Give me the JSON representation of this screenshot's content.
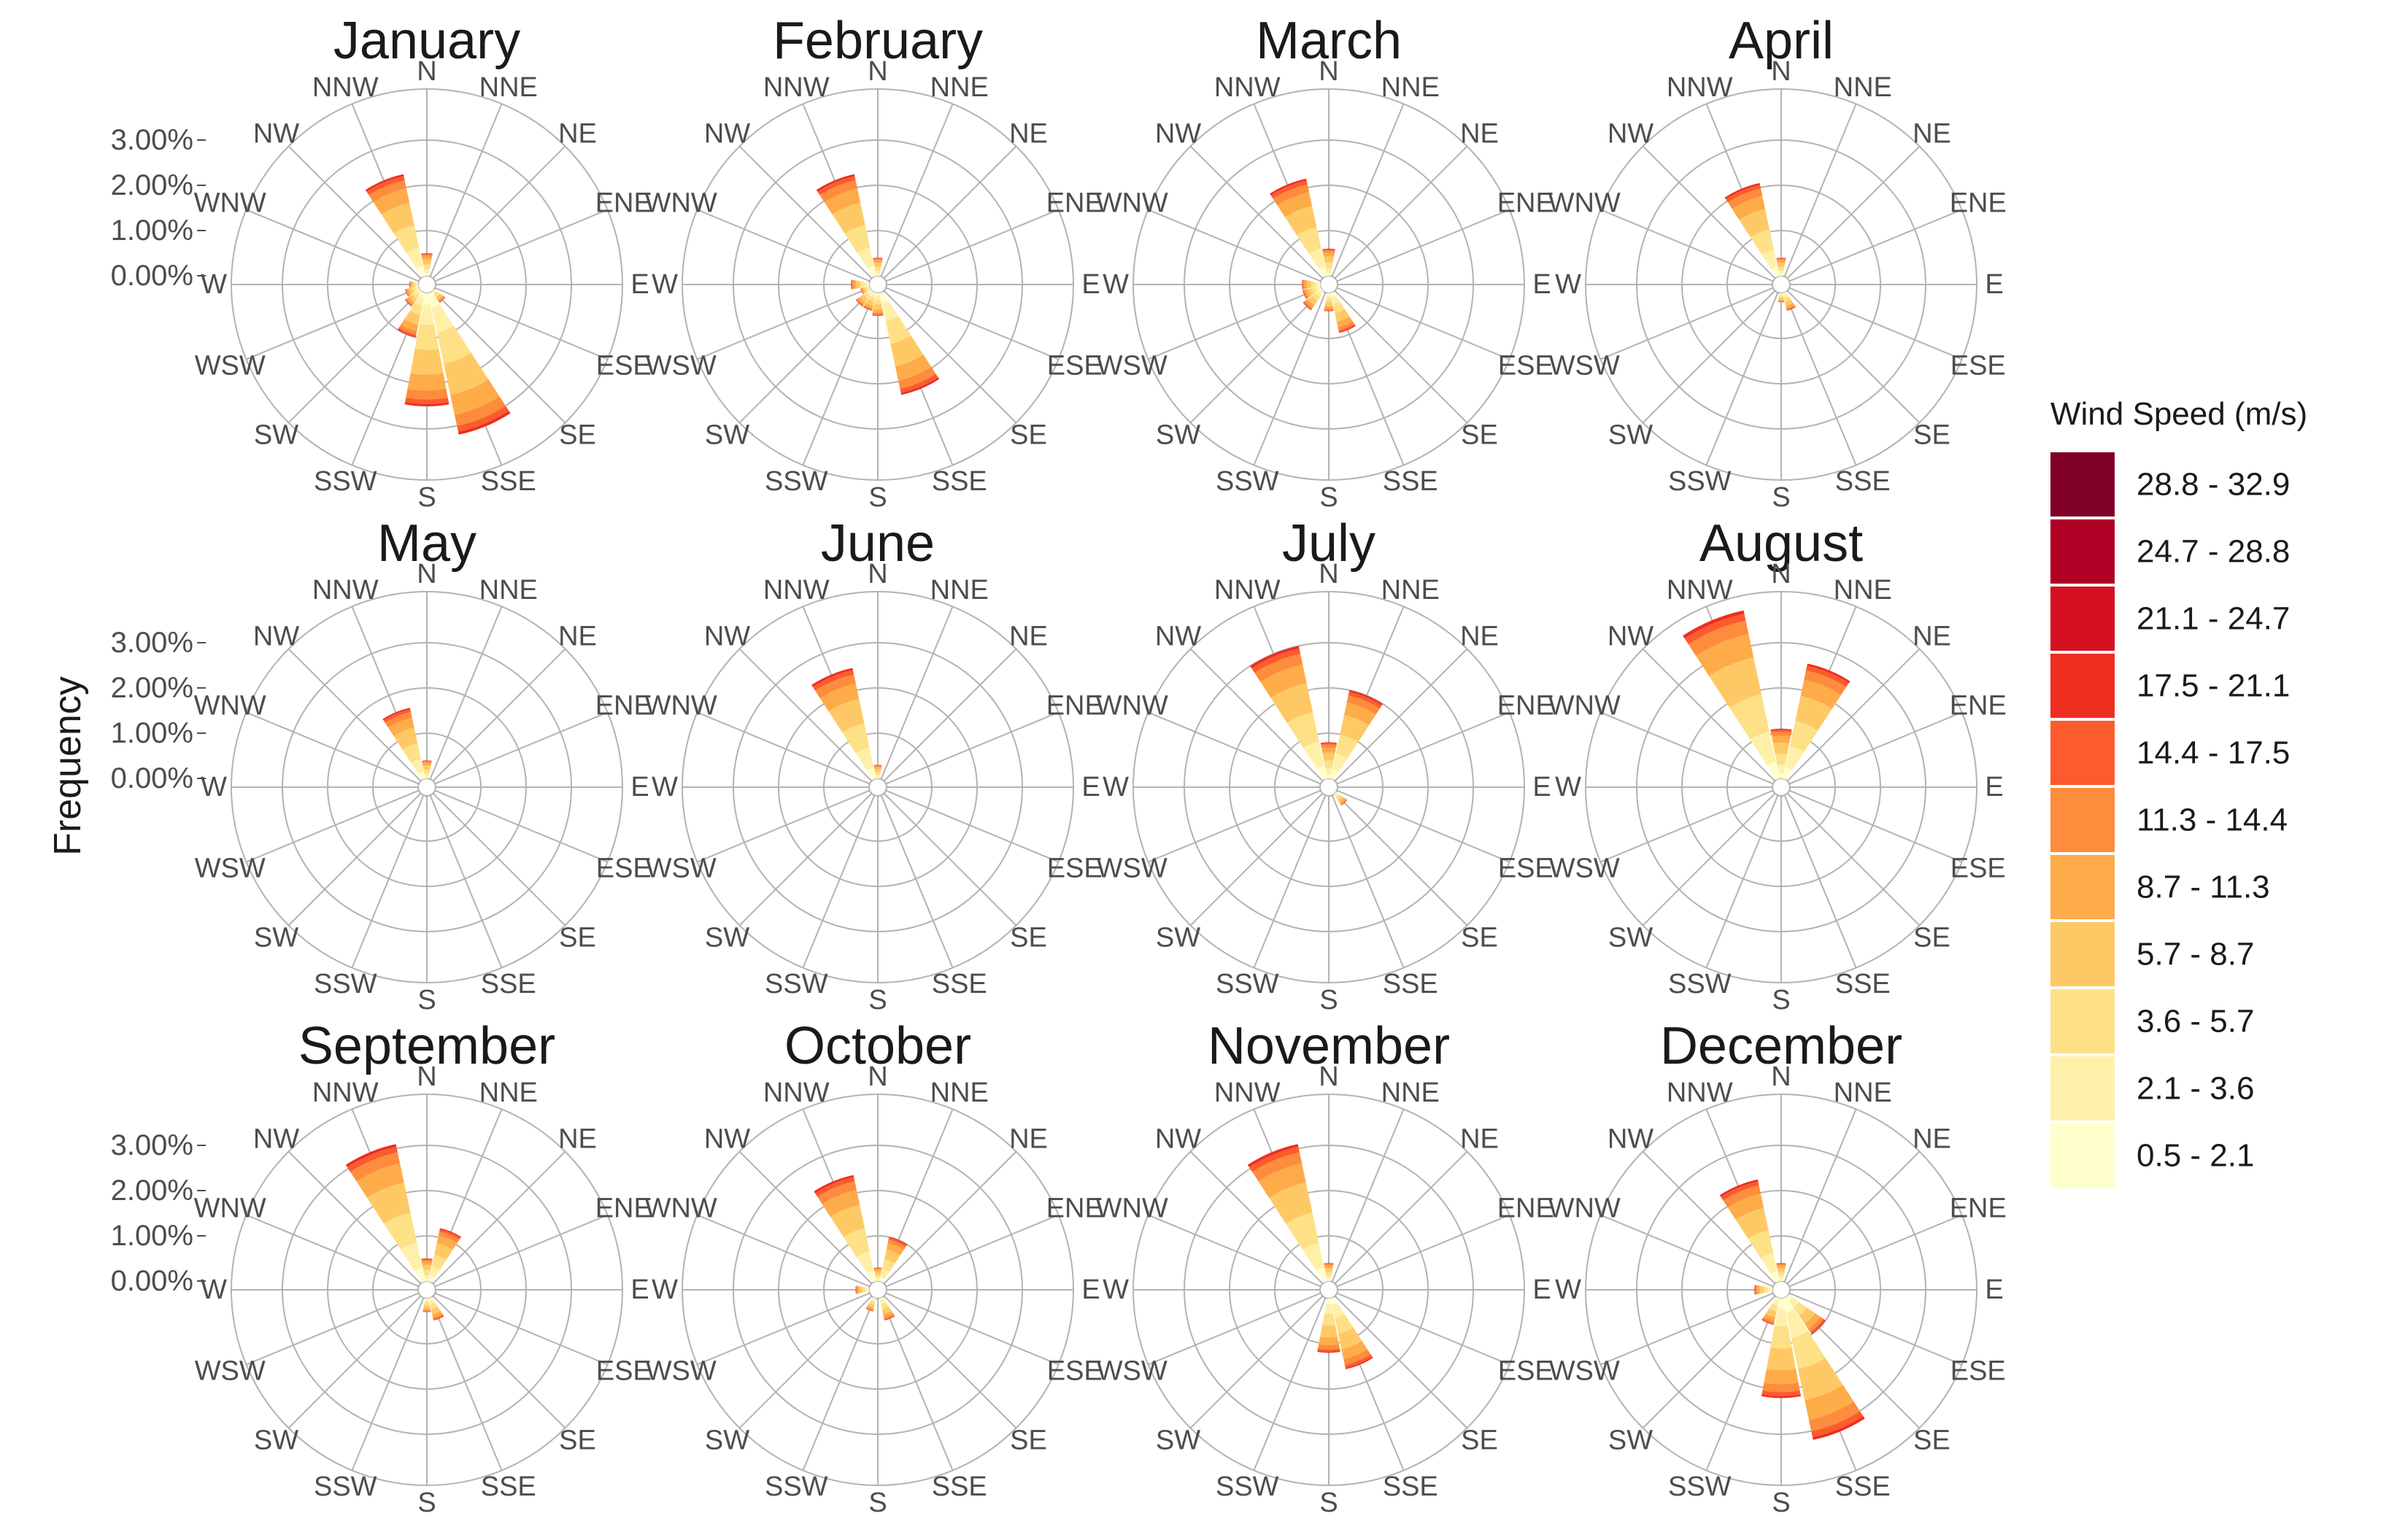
{
  "chart_data": {
    "type": "wind-rose",
    "ylabel": "Frequency",
    "legend_title": "Wind Speed (m/s)",
    "legend_placement": "right",
    "radial_ticks": [
      "0.00%",
      "1.00%",
      "2.00%",
      "3.00%"
    ],
    "radial_tick_values": [
      0,
      1,
      2,
      3
    ],
    "directions": [
      "N",
      "NNE",
      "NE",
      "ENE",
      "E",
      "ESE",
      "SE",
      "SSE",
      "S",
      "SSW",
      "SW",
      "WSW",
      "W",
      "WNW",
      "NW",
      "NNW"
    ],
    "speed_bins": [
      {
        "label": "0.5 - 2.1",
        "color": "#ffffcc"
      },
      {
        "label": "2.1 - 3.6",
        "color": "#fff0a9"
      },
      {
        "label": "3.6 - 5.7",
        "color": "#fee087"
      },
      {
        "label": "5.7 - 8.7",
        "color": "#fec965"
      },
      {
        "label": "8.7 - 11.3",
        "color": "#feab49"
      },
      {
        "label": "11.3 - 14.4",
        "color": "#fd8c3c"
      },
      {
        "label": "14.4 - 17.5",
        "color": "#fc5b2e"
      },
      {
        "label": "17.5 - 21.1",
        "color": "#ed2e21"
      },
      {
        "label": "21.1 - 24.7",
        "color": "#d41020"
      },
      {
        "label": "24.7 - 28.8",
        "color": "#b00026"
      },
      {
        "label": "28.8 - 32.9",
        "color": "#800026"
      }
    ],
    "panels": [
      {
        "title": "January",
        "totals": {
          "NNW": 2.3,
          "N": 0.5,
          "S": 2.5,
          "SSE": 3.2,
          "SW": 0.4,
          "SSW": 1.0,
          "WSW": 0.3,
          "W": 0.2,
          "SE": 0.3
        }
      },
      {
        "title": "February",
        "totals": {
          "NNW": 2.3,
          "N": 0.4,
          "SSE": 2.3,
          "S": 0.5,
          "SSW": 0.4,
          "SW": 0.4,
          "W": 0.4,
          "WSW": 0.2
        }
      },
      {
        "title": "March",
        "totals": {
          "NNW": 2.2,
          "N": 0.6,
          "SSE": 0.9,
          "SW": 0.5,
          "W": 0.4,
          "WSW": 0.4,
          "S": 0.4
        }
      },
      {
        "title": "April",
        "totals": {
          "NNW": 2.1,
          "N": 0.4,
          "SSE": 0.4,
          "S": 0.2
        }
      },
      {
        "title": "May",
        "totals": {
          "NNW": 1.6,
          "N": 0.4
        }
      },
      {
        "title": "June",
        "totals": {
          "NNW": 2.5,
          "N": 0.3
        }
      },
      {
        "title": "July",
        "totals": {
          "NNW": 3.0,
          "NNE": 2.0,
          "N": 0.8,
          "SE": 0.3
        }
      },
      {
        "title": "August",
        "totals": {
          "NNW": 3.8,
          "NNE": 2.6,
          "N": 1.1
        }
      },
      {
        "title": "September",
        "totals": {
          "NNW": 3.1,
          "NNE": 1.2,
          "N": 0.5,
          "SSE": 0.5,
          "S": 0.3
        }
      },
      {
        "title": "October",
        "totals": {
          "NNW": 2.4,
          "NNE": 1.0,
          "N": 0.3,
          "SSE": 0.5,
          "SSW": 0.3,
          "W": 0.3
        }
      },
      {
        "title": "November",
        "totals": {
          "NNW": 3.1,
          "N": 0.4,
          "SSE": 1.6,
          "S": 1.2
        }
      },
      {
        "title": "December",
        "totals": {
          "NNW": 2.3,
          "N": 0.4,
          "S": 2.2,
          "SSE": 3.2,
          "SE": 1.0,
          "SSW": 0.6,
          "W": 0.4
        }
      }
    ]
  }
}
